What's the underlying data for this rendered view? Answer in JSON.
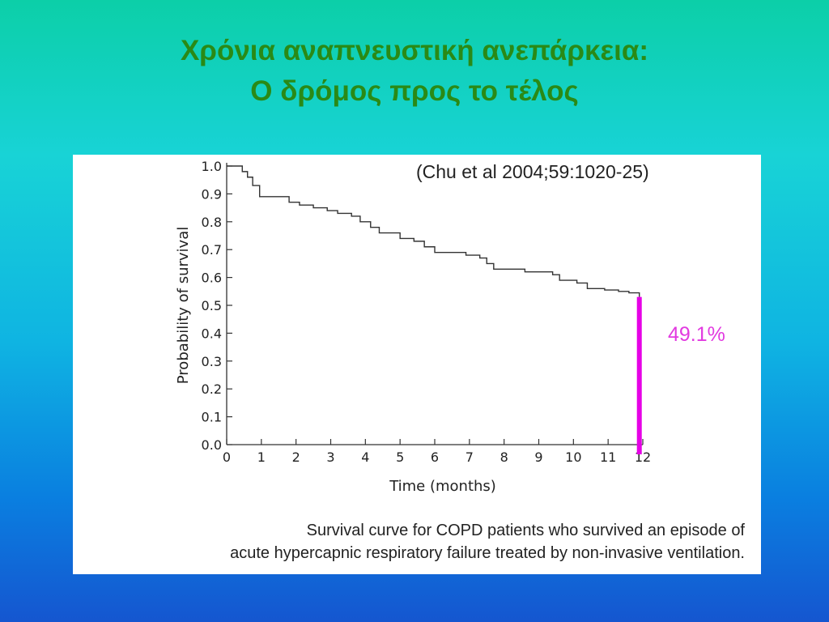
{
  "slide": {
    "title_line1": "Χρόνια αναπνευστική ανεπάρκεια:",
    "title_line2": "Ο δρόμος προς το τέλος"
  },
  "figure": {
    "citation": "(Chu et al 2004;59:1020-25)",
    "highlight_label": "49.1%",
    "caption_line1": "Survival curve for COPD patients who survived an episode of",
    "caption_line2": "acute hypercapnic respiratory failure treated by non-invasive ventilation.",
    "highlight_color": "#e600e6",
    "title_color": "#2a8a16"
  },
  "chart_data": {
    "type": "line",
    "xlabel": "Time (months)",
    "ylabel": "Probability of survival",
    "xlim": [
      0,
      12
    ],
    "ylim": [
      0,
      1.0
    ],
    "x_ticks": [
      "0",
      "1",
      "2",
      "3",
      "4",
      "5",
      "6",
      "7",
      "8",
      "9",
      "10",
      "11",
      "12"
    ],
    "y_ticks": [
      "0.0",
      "0.1",
      "0.2",
      "0.3",
      "0.4",
      "0.5",
      "0.6",
      "0.7",
      "0.8",
      "0.9",
      "1.0"
    ],
    "series": [
      {
        "points": [
          [
            0,
            1.0
          ],
          [
            0.35,
            1.0
          ],
          [
            0.45,
            0.98
          ],
          [
            0.6,
            0.96
          ],
          [
            0.75,
            0.93
          ],
          [
            0.95,
            0.89
          ],
          [
            1.5,
            0.89
          ],
          [
            1.8,
            0.87
          ],
          [
            2.1,
            0.86
          ],
          [
            2.5,
            0.85
          ],
          [
            2.9,
            0.84
          ],
          [
            3.2,
            0.83
          ],
          [
            3.6,
            0.82
          ],
          [
            3.85,
            0.8
          ],
          [
            4.15,
            0.78
          ],
          [
            4.4,
            0.76
          ],
          [
            4.8,
            0.76
          ],
          [
            5.0,
            0.74
          ],
          [
            5.4,
            0.73
          ],
          [
            5.7,
            0.71
          ],
          [
            6.0,
            0.69
          ],
          [
            6.3,
            0.69
          ],
          [
            6.9,
            0.68
          ],
          [
            7.3,
            0.67
          ],
          [
            7.5,
            0.65
          ],
          [
            7.7,
            0.63
          ],
          [
            8.3,
            0.63
          ],
          [
            8.6,
            0.62
          ],
          [
            9.4,
            0.61
          ],
          [
            9.6,
            0.59
          ],
          [
            10.1,
            0.58
          ],
          [
            10.4,
            0.56
          ],
          [
            10.9,
            0.555
          ],
          [
            11.3,
            0.55
          ],
          [
            11.6,
            0.545
          ],
          [
            11.9,
            0.53
          ]
        ]
      }
    ],
    "annotation": {
      "x": 11.9,
      "y_from": 0.0,
      "y_to": 0.53,
      "label": "49.1%"
    }
  }
}
